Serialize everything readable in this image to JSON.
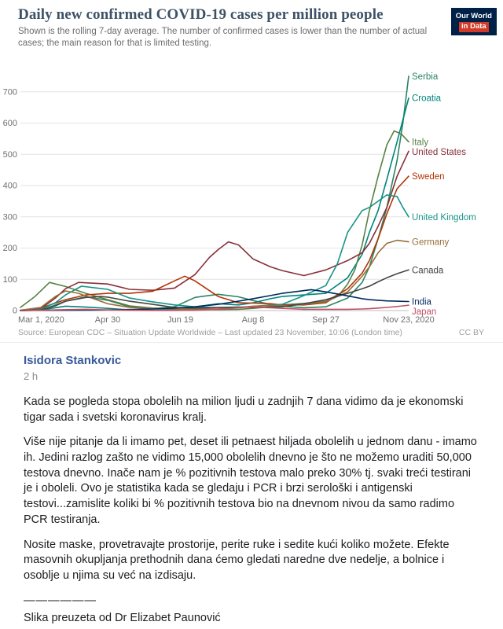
{
  "chart": {
    "title": "Daily new confirmed COVID-19 cases per million people",
    "subtitle": "Shown is the rolling 7-day average. The number of confirmed cases is lower than the number of actual cases; the main reason for that is limited testing.",
    "logo_line1": "Our World",
    "logo_line2": "in Data",
    "source": "Source: European CDC – Situation Update Worldwide – Last updated 23 November, 10:06 (London time)",
    "license": "CC BY",
    "colors": {
      "logo_bg": "#002147",
      "logo_accent": "#d13a27",
      "title": "#3e5266"
    }
  },
  "chart_data": {
    "type": "line",
    "title": "Daily new confirmed COVID-19 cases per million people",
    "x_axis": {
      "range_days": [
        0,
        267
      ],
      "tick_days": [
        0,
        60,
        110,
        160,
        210,
        267
      ],
      "tick_labels": [
        "Mar 1, 2020",
        "Apr 30",
        "Jun 19",
        "Aug 8",
        "Sep 27",
        "Nov 23, 2020"
      ]
    },
    "y_axis": {
      "ticks": [
        0,
        100,
        200,
        300,
        400,
        500,
        600,
        700
      ],
      "range": [
        0,
        790
      ]
    },
    "grid": true,
    "legend_position": "right-of-line-ends",
    "series": [
      {
        "name": "Serbia",
        "color": "#2c8465",
        "points": [
          [
            0,
            0
          ],
          [
            14,
            1
          ],
          [
            31,
            30
          ],
          [
            45,
            44
          ],
          [
            60,
            33
          ],
          [
            75,
            12
          ],
          [
            91,
            6
          ],
          [
            106,
            12
          ],
          [
            120,
            42
          ],
          [
            136,
            52
          ],
          [
            150,
            44
          ],
          [
            160,
            32
          ],
          [
            172,
            20
          ],
          [
            180,
            14
          ],
          [
            195,
            9
          ],
          [
            210,
            12
          ],
          [
            225,
            40
          ],
          [
            235,
            90
          ],
          [
            240,
            140
          ],
          [
            246,
            230
          ],
          [
            252,
            330
          ],
          [
            259,
            480
          ],
          [
            263,
            600
          ],
          [
            267,
            750
          ]
        ]
      },
      {
        "name": "Croatia",
        "color": "#00847e",
        "points": [
          [
            0,
            0
          ],
          [
            14,
            2
          ],
          [
            31,
            14
          ],
          [
            45,
            11
          ],
          [
            60,
            7
          ],
          [
            75,
            2
          ],
          [
            91,
            1
          ],
          [
            106,
            2
          ],
          [
            120,
            12
          ],
          [
            136,
            22
          ],
          [
            150,
            18
          ],
          [
            160,
            25
          ],
          [
            172,
            38
          ],
          [
            180,
            45
          ],
          [
            195,
            50
          ],
          [
            210,
            55
          ],
          [
            225,
            105
          ],
          [
            235,
            180
          ],
          [
            240,
            250
          ],
          [
            246,
            320
          ],
          [
            252,
            420
          ],
          [
            259,
            540
          ],
          [
            267,
            680
          ]
        ]
      },
      {
        "name": "Italy",
        "color": "#578145",
        "points": [
          [
            0,
            10
          ],
          [
            10,
            45
          ],
          [
            20,
            90
          ],
          [
            31,
            77
          ],
          [
            45,
            55
          ],
          [
            60,
            35
          ],
          [
            75,
            15
          ],
          [
            91,
            8
          ],
          [
            106,
            5
          ],
          [
            120,
            4
          ],
          [
            136,
            3
          ],
          [
            150,
            4
          ],
          [
            160,
            7
          ],
          [
            172,
            12
          ],
          [
            180,
            18
          ],
          [
            195,
            23
          ],
          [
            210,
            30
          ],
          [
            220,
            55
          ],
          [
            225,
            85
          ],
          [
            230,
            130
          ],
          [
            235,
            210
          ],
          [
            240,
            320
          ],
          [
            246,
            430
          ],
          [
            252,
            530
          ],
          [
            257,
            575
          ],
          [
            262,
            565
          ],
          [
            267,
            540
          ]
        ]
      },
      {
        "name": "United States",
        "color": "#883039",
        "points": [
          [
            0,
            0
          ],
          [
            14,
            6
          ],
          [
            24,
            40
          ],
          [
            31,
            70
          ],
          [
            40,
            90
          ],
          [
            60,
            85
          ],
          [
            75,
            68
          ],
          [
            91,
            65
          ],
          [
            106,
            72
          ],
          [
            120,
            115
          ],
          [
            130,
            170
          ],
          [
            136,
            195
          ],
          [
            143,
            220
          ],
          [
            150,
            210
          ],
          [
            160,
            165
          ],
          [
            172,
            140
          ],
          [
            180,
            128
          ],
          [
            195,
            112
          ],
          [
            210,
            130
          ],
          [
            225,
            160
          ],
          [
            235,
            185
          ],
          [
            240,
            215
          ],
          [
            246,
            270
          ],
          [
            252,
            330
          ],
          [
            259,
            430
          ],
          [
            267,
            510
          ]
        ]
      },
      {
        "name": "Sweden",
        "color": "#b13507",
        "points": [
          [
            0,
            1
          ],
          [
            14,
            8
          ],
          [
            31,
            35
          ],
          [
            45,
            50
          ],
          [
            60,
            55
          ],
          [
            75,
            55
          ],
          [
            91,
            62
          ],
          [
            106,
            95
          ],
          [
            113,
            110
          ],
          [
            120,
            95
          ],
          [
            136,
            45
          ],
          [
            150,
            25
          ],
          [
            160,
            24
          ],
          [
            172,
            22
          ],
          [
            180,
            18
          ],
          [
            195,
            18
          ],
          [
            210,
            25
          ],
          [
            225,
            70
          ],
          [
            235,
            120
          ],
          [
            240,
            160
          ],
          [
            246,
            230
          ],
          [
            252,
            310
          ],
          [
            259,
            390
          ],
          [
            267,
            430
          ]
        ]
      },
      {
        "name": "United Kingdom",
        "color": "#169487",
        "points": [
          [
            0,
            0
          ],
          [
            14,
            4
          ],
          [
            24,
            25
          ],
          [
            31,
            50
          ],
          [
            42,
            78
          ],
          [
            60,
            68
          ],
          [
            75,
            40
          ],
          [
            91,
            28
          ],
          [
            106,
            18
          ],
          [
            120,
            12
          ],
          [
            136,
            9
          ],
          [
            150,
            10
          ],
          [
            160,
            13
          ],
          [
            172,
            18
          ],
          [
            180,
            20
          ],
          [
            195,
            48
          ],
          [
            210,
            80
          ],
          [
            218,
            150
          ],
          [
            225,
            250
          ],
          [
            235,
            320
          ],
          [
            240,
            330
          ],
          [
            246,
            350
          ],
          [
            252,
            370
          ],
          [
            259,
            365
          ],
          [
            263,
            330
          ],
          [
            267,
            300
          ]
        ]
      },
      {
        "name": "Germany",
        "color": "#996d39",
        "points": [
          [
            0,
            1
          ],
          [
            14,
            10
          ],
          [
            24,
            45
          ],
          [
            31,
            63
          ],
          [
            40,
            55
          ],
          [
            60,
            22
          ],
          [
            75,
            10
          ],
          [
            91,
            6
          ],
          [
            106,
            5
          ],
          [
            120,
            6
          ],
          [
            136,
            8
          ],
          [
            150,
            10
          ],
          [
            160,
            14
          ],
          [
            172,
            16
          ],
          [
            180,
            15
          ],
          [
            195,
            20
          ],
          [
            210,
            28
          ],
          [
            225,
            60
          ],
          [
            235,
            110
          ],
          [
            240,
            140
          ],
          [
            246,
            185
          ],
          [
            252,
            215
          ],
          [
            259,
            225
          ],
          [
            267,
            220
          ]
        ]
      },
      {
        "name": "Canada",
        "color": "#454545",
        "points": [
          [
            0,
            0
          ],
          [
            14,
            2
          ],
          [
            24,
            15
          ],
          [
            31,
            30
          ],
          [
            45,
            42
          ],
          [
            55,
            45
          ],
          [
            60,
            43
          ],
          [
            75,
            30
          ],
          [
            91,
            20
          ],
          [
            106,
            10
          ],
          [
            120,
            8
          ],
          [
            136,
            10
          ],
          [
            150,
            11
          ],
          [
            160,
            10
          ],
          [
            172,
            11
          ],
          [
            180,
            12
          ],
          [
            195,
            22
          ],
          [
            210,
            35
          ],
          [
            225,
            55
          ],
          [
            235,
            70
          ],
          [
            240,
            78
          ],
          [
            246,
            92
          ],
          [
            252,
            105
          ],
          [
            259,
            118
          ],
          [
            267,
            130
          ]
        ]
      },
      {
        "name": "India",
        "color": "#00295b",
        "points": [
          [
            0,
            0
          ],
          [
            31,
            1
          ],
          [
            60,
            2
          ],
          [
            91,
            5
          ],
          [
            106,
            8
          ],
          [
            120,
            12
          ],
          [
            136,
            20
          ],
          [
            150,
            30
          ],
          [
            160,
            38
          ],
          [
            172,
            48
          ],
          [
            180,
            55
          ],
          [
            195,
            64
          ],
          [
            200,
            67
          ],
          [
            210,
            60
          ],
          [
            225,
            47
          ],
          [
            235,
            38
          ],
          [
            240,
            35
          ],
          [
            246,
            33
          ],
          [
            252,
            31
          ],
          [
            259,
            30
          ],
          [
            267,
            29
          ]
        ]
      },
      {
        "name": "Japan",
        "color": "#c15065",
        "points": [
          [
            0,
            0
          ],
          [
            14,
            1
          ],
          [
            31,
            3
          ],
          [
            45,
            4
          ],
          [
            60,
            2
          ],
          [
            75,
            1
          ],
          [
            91,
            0.5
          ],
          [
            106,
            0.5
          ],
          [
            120,
            1
          ],
          [
            136,
            4
          ],
          [
            150,
            9
          ],
          [
            157,
            11
          ],
          [
            160,
            11
          ],
          [
            172,
            9
          ],
          [
            180,
            7
          ],
          [
            195,
            4
          ],
          [
            210,
            4
          ],
          [
            225,
            4
          ],
          [
            235,
            5
          ],
          [
            240,
            6
          ],
          [
            246,
            8
          ],
          [
            252,
            10
          ],
          [
            259,
            13
          ],
          [
            267,
            17
          ]
        ]
      }
    ]
  },
  "post": {
    "author": "Isidora Stankovic",
    "author_color": "#385898",
    "timestamp": "2 h",
    "paragraphs": [
      "Kada se pogleda stopa obolelih na milion ljudi u zadnjih 7 dana vidimo da je ekonomski tigar sada i svetski koronavirus kralj.",
      "Više nije pitanje da li imamo pet, deset ili petnaest hiljada obolelih u jednom danu - imamo ih. Jedini razlog zašto ne vidimo 15,000 obolelih dnevno je što ne možemo uraditi 50,000 testova dnevno. Inače nam je % pozitivnih testova malo preko 30% tj. svaki treći testirani je i oboleli. Ovo je statistika kada se gledaju i PCR i brzi serološki i antigenski testovi...zamislite koliki bi % pozitivnih testova bio na dnevnom nivou da samo radimo PCR testiranja.",
      "Nosite maske, provetravajte prostorije, perite ruke i sedite kući koliko možete. Efekte masovnih okupljanja prethodnih dana ćemo gledati naredne dve nedelje, a bolnice i osoblje u njima su već na izdisaju.",
      "——————",
      "Slika preuzeta od Dr Elizabet Paunović"
    ]
  }
}
